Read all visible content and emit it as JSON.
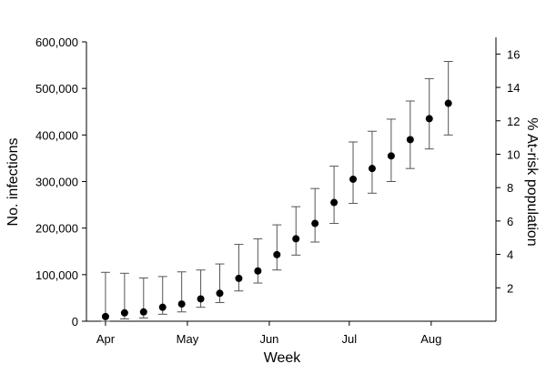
{
  "chart_data": {
    "type": "scatter",
    "title": "",
    "xlabel": "Week",
    "ylabel": "No. infections",
    "y2label": "% At-risk population",
    "xlim": [
      0,
      21.5
    ],
    "ylim": [
      0,
      600000
    ],
    "y2lim": [
      0,
      17
    ],
    "y_ticks": [
      0,
      100000,
      200000,
      300000,
      400000,
      500000,
      600000
    ],
    "y_tick_labels": [
      "0",
      "100,000",
      "200,000",
      "300,000",
      "400,000",
      "500,000",
      "600,000"
    ],
    "y2_ticks": [
      2,
      4,
      6,
      8,
      10,
      12,
      14,
      16
    ],
    "y2_tick_labels": [
      "2",
      "4",
      "6",
      "8",
      "10",
      "12",
      "14",
      "16"
    ],
    "x_ticks": [
      1,
      5.3,
      9.6,
      13.8,
      18.1
    ],
    "x_tick_labels": [
      "Apr",
      "May",
      "Jun",
      "Jul",
      "Aug"
    ],
    "grid": false,
    "legend": null,
    "series": [
      {
        "x": [
          1,
          2,
          3,
          4,
          5,
          6,
          7,
          8,
          9,
          10,
          11,
          12,
          13,
          14,
          15,
          16,
          17,
          18,
          19
        ],
        "values": [
          10000,
          18000,
          20000,
          30000,
          37000,
          48000,
          60000,
          92000,
          108000,
          143000,
          177000,
          210000,
          255000,
          305000,
          328000,
          355000,
          390000,
          435000,
          468000
        ],
        "lower": [
          0,
          5000,
          7000,
          15000,
          20000,
          30000,
          40000,
          65000,
          82000,
          110000,
          142000,
          170000,
          210000,
          253000,
          275000,
          300000,
          328000,
          370000,
          400000
        ],
        "upper": [
          105000,
          103000,
          93000,
          96000,
          106000,
          110000,
          123000,
          165000,
          177000,
          207000,
          246000,
          285000,
          333000,
          385000,
          408000,
          434000,
          473000,
          521000,
          558000
        ]
      }
    ]
  }
}
